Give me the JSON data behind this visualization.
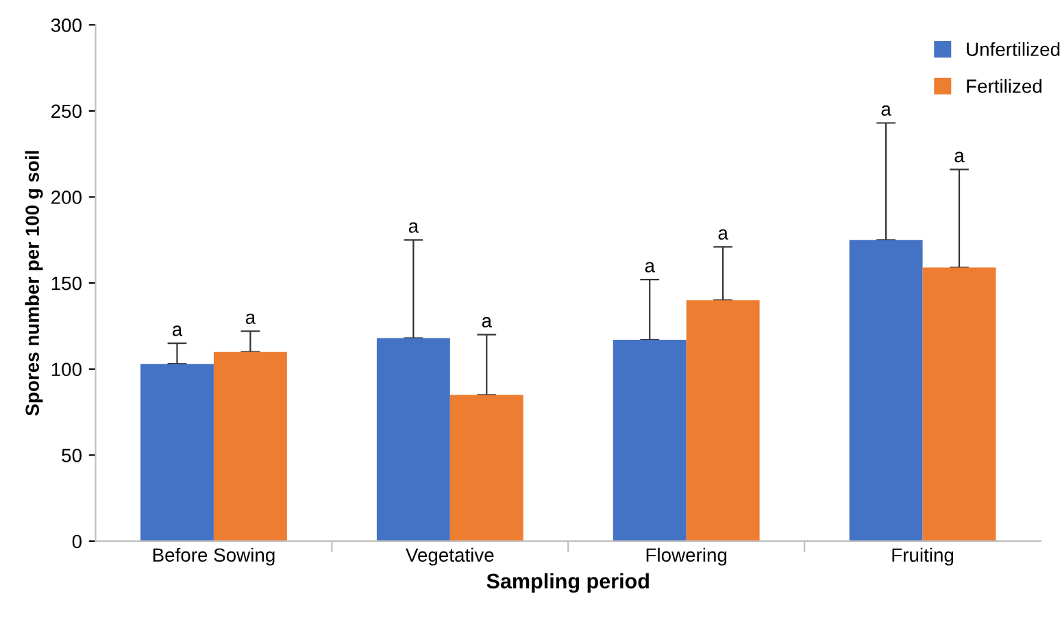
{
  "chart_data": {
    "type": "bar",
    "xlabel": "Sampling period",
    "ylabel": "Spores number per 100 g soil",
    "categories": [
      "Before Sowing",
      "Vegetative",
      "Flowering",
      "Fruiting"
    ],
    "series": [
      {
        "name": "Unfertilized",
        "color": "#4472c4",
        "values": [
          103,
          118,
          117,
          175
        ],
        "errors": [
          [
            103,
            115
          ],
          [
            118,
            175
          ],
          [
            117,
            152
          ],
          [
            175,
            243
          ]
        ]
      },
      {
        "name": "Fertilized",
        "color": "#ed7d31",
        "values": [
          110,
          85,
          140,
          159
        ],
        "errors": [
          [
            110,
            122
          ],
          [
            85,
            120
          ],
          [
            140,
            171
          ],
          [
            159,
            216
          ]
        ]
      }
    ],
    "annotations": [
      "a",
      "a",
      "a",
      "a",
      "a",
      "a",
      "a",
      "a"
    ],
    "ylim": [
      0,
      300
    ],
    "yticks": [
      0,
      50,
      100,
      150,
      200,
      250,
      300
    ],
    "grid": false,
    "legend": "top right"
  }
}
